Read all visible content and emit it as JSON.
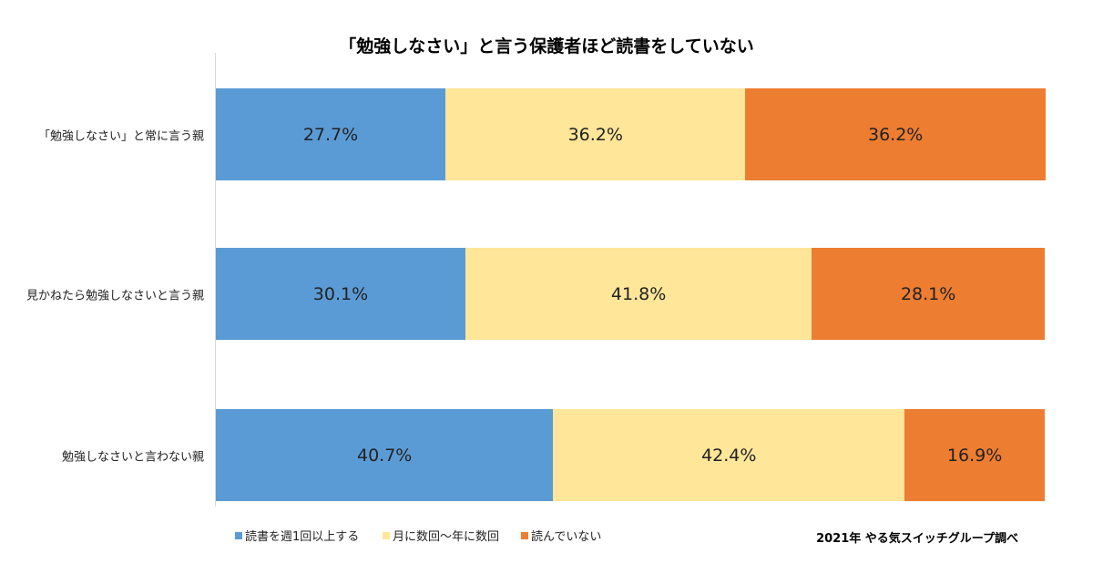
{
  "chart_data": {
    "type": "bar",
    "orientation": "horizontal",
    "stacked": "percent",
    "title": "「勉強しなさい」と言う保護者ほど読書をしていない",
    "categories": [
      "「勉強しなさい」と常に言う親",
      "見かねたら勉強しなさいと言う親",
      "勉強しなさいと言わない親"
    ],
    "series": [
      {
        "name": "読書を週1回以上する",
        "color": "#5B9BD5",
        "values": [
          27.7,
          30.1,
          40.7
        ],
        "labels": [
          "27.7%",
          "30.1%",
          "40.7%"
        ]
      },
      {
        "name": "月に数回～年に数回",
        "color": "#FFE699",
        "values": [
          36.2,
          41.8,
          42.4
        ],
        "labels": [
          "36.2%",
          "41.8%",
          "42.4%"
        ]
      },
      {
        "name": "読んでいない",
        "color": "#ED7D31",
        "values": [
          36.2,
          28.1,
          16.9
        ],
        "labels": [
          "36.2%",
          "28.1%",
          "16.9%"
        ]
      }
    ],
    "xlim": [
      0,
      100
    ],
    "grid": false,
    "legend": "bottom-left"
  },
  "source": "2021年 やる気スイッチグループ調べ"
}
